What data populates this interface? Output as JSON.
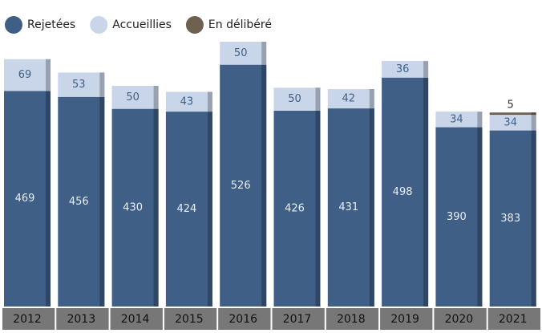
{
  "chart_data": {
    "type": "stacked-bar",
    "categories": [
      "2012",
      "2013",
      "2014",
      "2015",
      "2016",
      "2017",
      "2018",
      "2019",
      "2020",
      "2021"
    ],
    "series": [
      {
        "name": "Rejetées",
        "color": "#3f5f86",
        "values": [
          469,
          456,
          430,
          424,
          526,
          426,
          431,
          498,
          390,
          383
        ]
      },
      {
        "name": "Accueillies",
        "color": "#c9d6e9",
        "values": [
          69,
          53,
          50,
          43,
          50,
          50,
          42,
          36,
          34,
          34
        ]
      },
      {
        "name": "En délibéré",
        "color": "#6e6150",
        "values": [
          null,
          null,
          null,
          null,
          null,
          null,
          null,
          null,
          null,
          5
        ]
      }
    ],
    "legend": "top-left"
  }
}
